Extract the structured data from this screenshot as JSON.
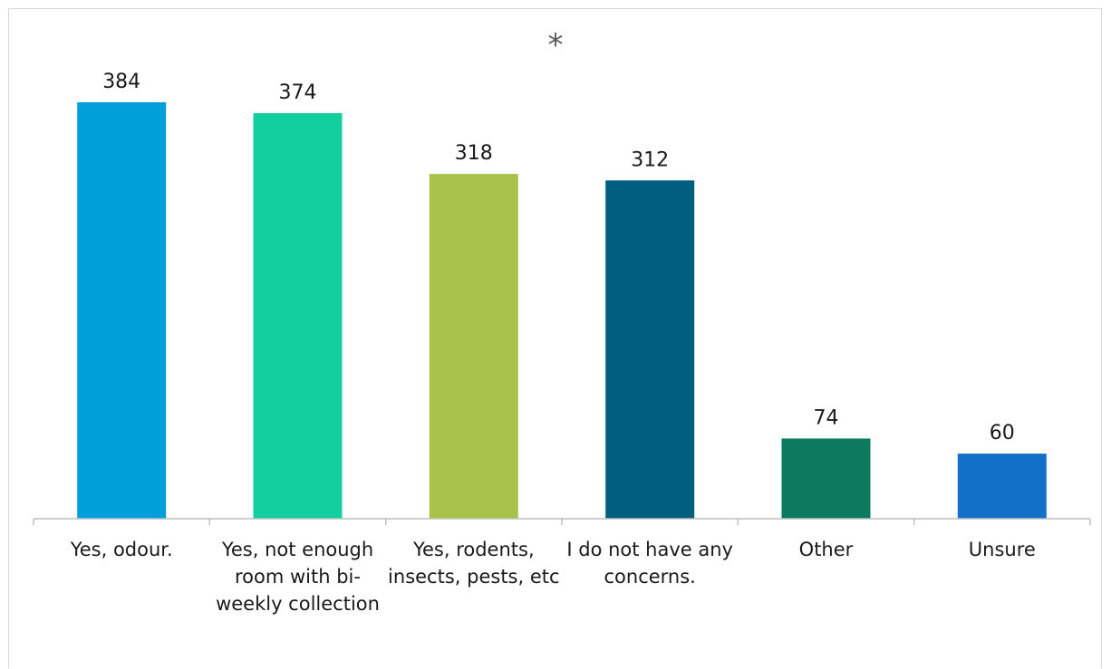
{
  "chart_data": {
    "type": "bar",
    "title": "*",
    "xlabel": "",
    "ylabel": "",
    "categories": [
      "Yes, odour.",
      "Yes, not enough room with bi-weekly collection",
      "Yes, rodents, insects, pests, etc",
      "I do not have any concerns.",
      "Other",
      "Unsure"
    ],
    "values": [
      384,
      374,
      318,
      312,
      74,
      60
    ],
    "colors": [
      "#009fda",
      "#13cf9e",
      "#a8c24a",
      "#005f80",
      "#0c7a5e",
      "#1270c9"
    ],
    "ylim": [
      0,
      400
    ],
    "grid": false,
    "legend": "none"
  }
}
